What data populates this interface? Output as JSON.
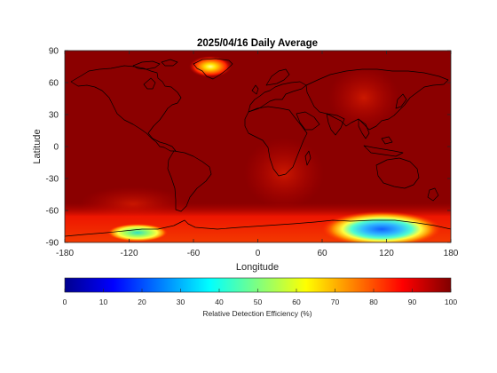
{
  "title": "2025/04/16 Daily Average",
  "map": {
    "xlabel": "Longitude",
    "ylabel": "Latitude",
    "x_ticks": [
      "-180",
      "-120",
      "-60",
      "0",
      "60",
      "120",
      "180"
    ],
    "y_ticks": [
      "90",
      "60",
      "30",
      "0",
      "-30",
      "-60",
      "-90"
    ],
    "x_range": [
      -180,
      180
    ],
    "y_range": [
      -90,
      90
    ],
    "background_color": "#8b0000",
    "coastline_color": "#000000"
  },
  "colorbar": {
    "label": "Relative Detection Efficiency (%)",
    "ticks": [
      "0",
      "10",
      "20",
      "30",
      "40",
      "50",
      "60",
      "70",
      "80",
      "90",
      "100"
    ],
    "range": [
      0,
      100
    ],
    "colormap": "jet"
  },
  "features": [
    {
      "name": "greenland-hotspot",
      "lon": -40,
      "lat": 74,
      "efficiency": 72
    },
    {
      "name": "east-antarctica-low",
      "lon": 120,
      "lat": -76,
      "efficiency": 30
    },
    {
      "name": "west-antarctica-low",
      "lon": -115,
      "lat": -80,
      "efficiency": 45
    },
    {
      "name": "south-atlantic-lightening",
      "lon": 30,
      "lat": -60,
      "efficiency": 88
    }
  ]
}
